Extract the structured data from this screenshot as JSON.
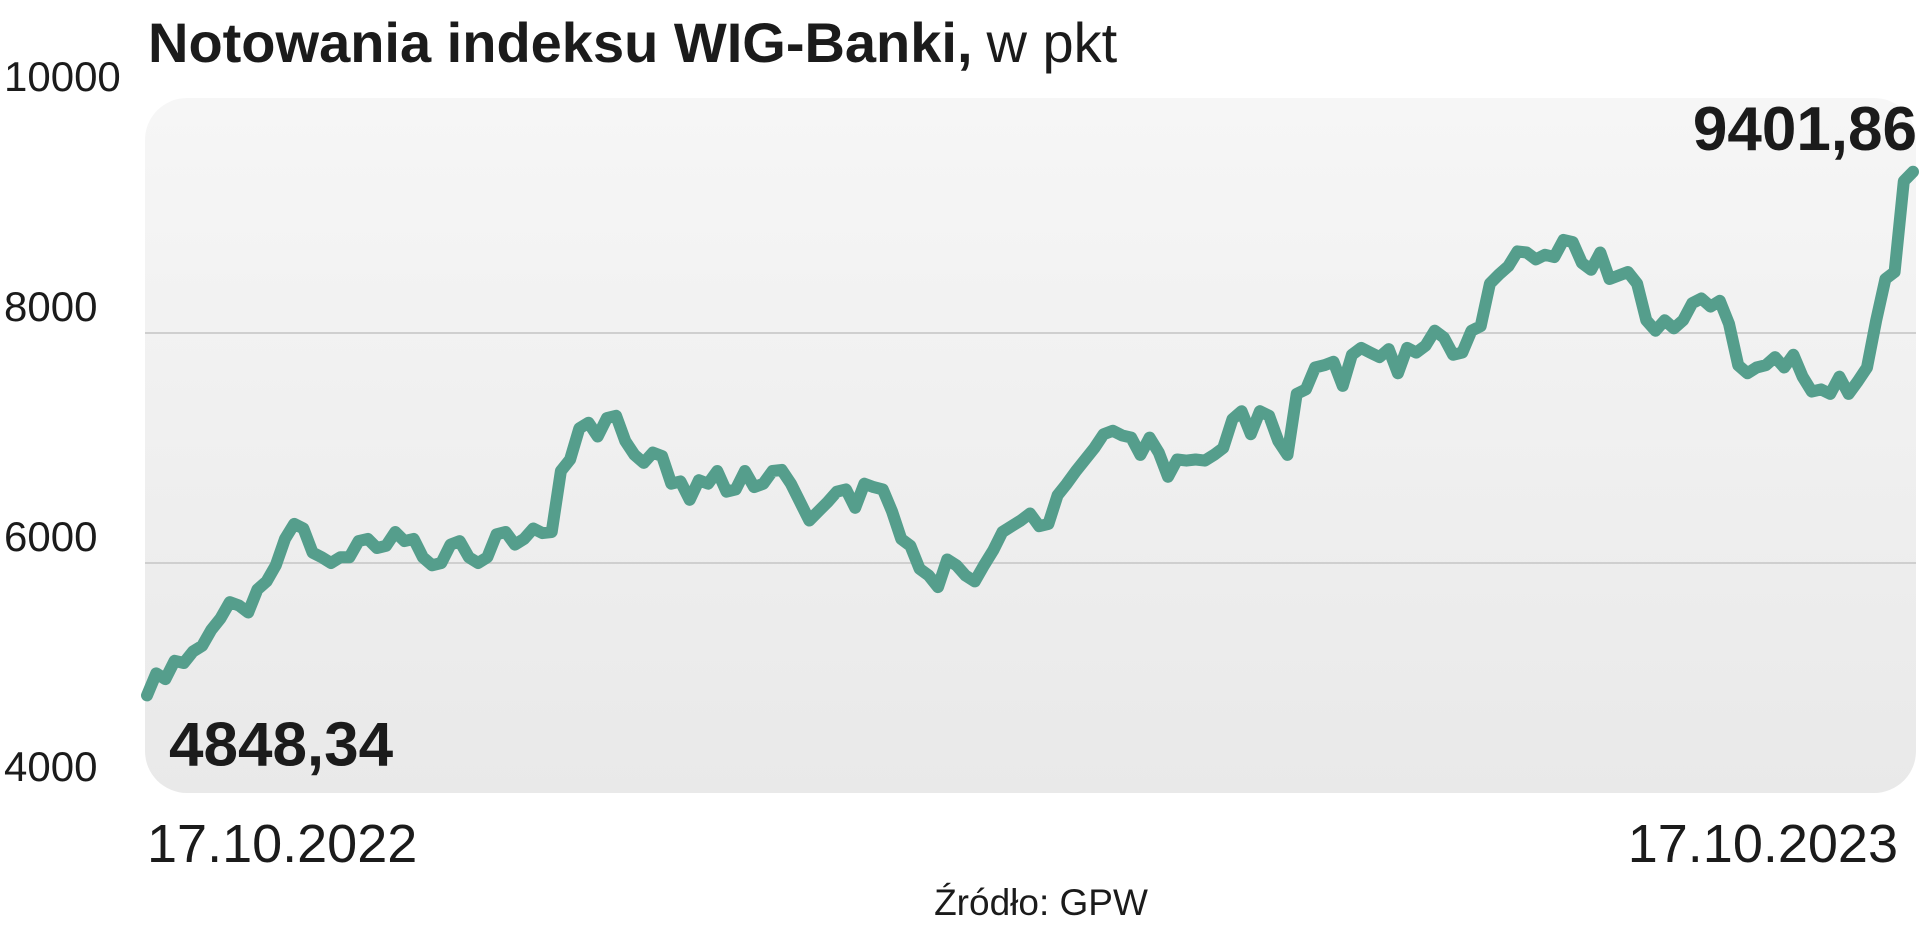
{
  "chart_data": {
    "type": "line",
    "title": "Notowania indeksu WIG-Banki,",
    "title_unit": "w pkt",
    "source": "Źródło: GPW",
    "categories": [
      "17.10.2022",
      null,
      null,
      null,
      null,
      null,
      null,
      null,
      null,
      null,
      null,
      null,
      null,
      null,
      null,
      null,
      null,
      null,
      null,
      null,
      null,
      null,
      null,
      null,
      null,
      null,
      null,
      null,
      null,
      null,
      null,
      null,
      null,
      null,
      null,
      null,
      null,
      null,
      null,
      null,
      null,
      null,
      null,
      null,
      null,
      null,
      null,
      null,
      null,
      null,
      null,
      null,
      null,
      null,
      null,
      null,
      null,
      null,
      null,
      null,
      null,
      null,
      null,
      null,
      null,
      null,
      null,
      null,
      null,
      null,
      null,
      null,
      null,
      null,
      null,
      null,
      null,
      null,
      null,
      null,
      null,
      null,
      null,
      null,
      null,
      null,
      null,
      null,
      null,
      null,
      null,
      null,
      null,
      null,
      null,
      null,
      null,
      null,
      null,
      null,
      null,
      null,
      null,
      null,
      null,
      null,
      null,
      null,
      null,
      null,
      null,
      null,
      null,
      null,
      null,
      null,
      null,
      null,
      null,
      null,
      null,
      null,
      null,
      null,
      null,
      null,
      null,
      null,
      null,
      null,
      null,
      null,
      null,
      null,
      null,
      null,
      null,
      null,
      null,
      null,
      null,
      null,
      null,
      null,
      null,
      null,
      null,
      null,
      null,
      null,
      null,
      null,
      null,
      null,
      null,
      null,
      null,
      null,
      null,
      null,
      null,
      null,
      null,
      null,
      null,
      null,
      null,
      null,
      null,
      null,
      null,
      null,
      null,
      null,
      null,
      null,
      null,
      null,
      null,
      null,
      null,
      null,
      null,
      null,
      null,
      null,
      null,
      null,
      null,
      null,
      null,
      null,
      "17.10.2023"
    ],
    "values": [
      4848.34,
      5040,
      4990,
      5150,
      5130,
      5230,
      5280,
      5420,
      5520,
      5660,
      5630,
      5570,
      5770,
      5840,
      5980,
      6210,
      6340,
      6300,
      6090,
      6050,
      6000,
      6050,
      6050,
      6190,
      6210,
      6130,
      6150,
      6270,
      6190,
      6210,
      6050,
      5980,
      6000,
      6160,
      6190,
      6050,
      6000,
      6050,
      6250,
      6270,
      6160,
      6210,
      6300,
      6260,
      6270,
      6800,
      6900,
      7170,
      7220,
      7100,
      7260,
      7280,
      7060,
      6940,
      6870,
      6960,
      6930,
      6690,
      6710,
      6550,
      6720,
      6690,
      6800,
      6620,
      6640,
      6800,
      6660,
      6690,
      6800,
      6810,
      6690,
      6530,
      6370,
      6450,
      6530,
      6620,
      6640,
      6480,
      6690,
      6660,
      6640,
      6450,
      6210,
      6150,
      5950,
      5890,
      5790,
      6030,
      5980,
      5890,
      5840,
      5980,
      6110,
      6270,
      6320,
      6370,
      6430,
      6320,
      6340,
      6590,
      6690,
      6800,
      6900,
      7000,
      7120,
      7150,
      7110,
      7090,
      6940,
      7090,
      6960,
      6750,
      6900,
      6890,
      6900,
      6890,
      6940,
      7000,
      7250,
      7320,
      7120,
      7320,
      7280,
      7060,
      6940,
      7470,
      7510,
      7700,
      7720,
      7750,
      7540,
      7810,
      7870,
      7830,
      7790,
      7860,
      7650,
      7870,
      7830,
      7890,
      8020,
      7960,
      7810,
      7830,
      8020,
      8060,
      8430,
      8510,
      8580,
      8710,
      8700,
      8640,
      8680,
      8660,
      8810,
      8790,
      8610,
      8550,
      8700,
      8470,
      8500,
      8530,
      8430,
      8110,
      8020,
      8110,
      8040,
      8110,
      8260,
      8300,
      8230,
      8280,
      8080,
      7720,
      7650,
      7700,
      7720,
      7790,
      7700,
      7810,
      7620,
      7490,
      7510,
      7470,
      7620,
      7470,
      7580,
      7700,
      8110,
      8470,
      8530,
      9320,
      9401.86
    ],
    "value_labels": [
      "4848,34",
      null,
      null,
      null,
      null,
      null,
      null,
      null,
      null,
      null,
      null,
      null,
      null,
      null,
      null,
      null,
      null,
      null,
      null,
      null,
      null,
      null,
      null,
      null,
      null,
      null,
      null,
      null,
      null,
      null,
      null,
      null,
      null,
      null,
      null,
      null,
      null,
      null,
      null,
      null,
      null,
      null,
      null,
      null,
      null,
      null,
      null,
      null,
      null,
      null,
      null,
      null,
      null,
      null,
      null,
      null,
      null,
      null,
      null,
      null,
      null,
      null,
      null,
      null,
      null,
      null,
      null,
      null,
      null,
      null,
      null,
      null,
      null,
      null,
      null,
      null,
      null,
      null,
      null,
      null,
      null,
      null,
      null,
      null,
      null,
      null,
      null,
      null,
      null,
      null,
      null,
      null,
      null,
      null,
      null,
      null,
      null,
      null,
      null,
      null,
      null,
      null,
      null,
      null,
      null,
      null,
      null,
      null,
      null,
      null,
      null,
      null,
      null,
      null,
      null,
      null,
      null,
      null,
      null,
      null,
      null,
      null,
      null,
      null,
      null,
      null,
      null,
      null,
      null,
      null,
      null,
      null,
      null,
      null,
      null,
      null,
      null,
      null,
      null,
      null,
      null,
      null,
      null,
      null,
      null,
      null,
      null,
      null,
      null,
      null,
      null,
      null,
      null,
      null,
      null,
      null,
      null,
      null,
      null,
      null,
      null,
      null,
      null,
      null,
      null,
      null,
      null,
      null,
      null,
      null,
      null,
      null,
      null,
      null,
      null,
      null,
      null,
      null,
      null,
      null,
      null,
      null,
      null,
      null,
      null,
      null,
      null,
      null,
      null,
      null,
      null,
      null,
      "9401,86"
    ],
    "color": "#559e8c",
    "ylim": [
      4000,
      10000
    ],
    "yticks": [
      4000,
      6000,
      8000,
      10000
    ],
    "grid": true
  }
}
